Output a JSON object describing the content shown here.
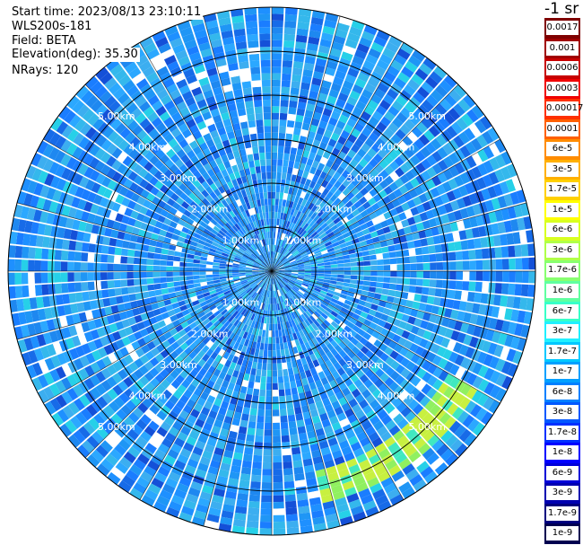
{
  "header": {
    "start_time": "Start time: 2023/08/13 23:10:11",
    "instrument": "WLS200s-181",
    "field": "Field: BETA",
    "elevation": "Elevation(deg): 35.30",
    "nrays": "NRays: 120"
  },
  "ring_labels": {
    "unit": "km",
    "values": [
      "1.00km",
      "2.00km",
      "3.00km",
      "4.00km",
      "5.00km"
    ]
  },
  "colorbar": {
    "title": "-1 sr",
    "labels": [
      "0.0017",
      "0.001",
      "0.0006",
      "0.0003",
      "0.00017",
      "0.0001",
      "6e-5",
      "3e-5",
      "1.7e-5",
      "1e-5",
      "6e-6",
      "3e-6",
      "1.7e-6",
      "1e-6",
      "6e-7",
      "3e-7",
      "1.7e-7",
      "1e-7",
      "6e-8",
      "3e-8",
      "1.7e-8",
      "1e-8",
      "6e-9",
      "3e-9",
      "1.7e-9",
      "1e-9"
    ],
    "colors": [
      "#7f0000",
      "#a00000",
      "#c80000",
      "#f00000",
      "#ff3000",
      "#ff6000",
      "#ff8c00",
      "#ffb000",
      "#ffd000",
      "#ffff00",
      "#d8ff20",
      "#b0ff48",
      "#88ff70",
      "#60ffa0",
      "#38ffc8",
      "#20f0ff",
      "#00c8ff",
      "#00a0ff",
      "#0080ff",
      "#0058ff",
      "#0030ff",
      "#0000ff",
      "#0000d8",
      "#0000b0",
      "#00007f",
      "#000050"
    ]
  },
  "chart_data": {
    "type": "heatmap",
    "projection": "polar-ppi",
    "field": "BETA",
    "elevation_deg": 35.3,
    "n_rays": 120,
    "range_rings_km": [
      1,
      2,
      3,
      4,
      5
    ],
    "max_range_km": 6.0,
    "colorscale": "log",
    "value_range": [
      1e-09,
      0.0017
    ],
    "typical_value": "1e-8 to 6e-8",
    "feature": "enhanced backscatter arc (~1e-6 to 1e-5) near 5 km range, azimuth ~120-165 deg"
  }
}
